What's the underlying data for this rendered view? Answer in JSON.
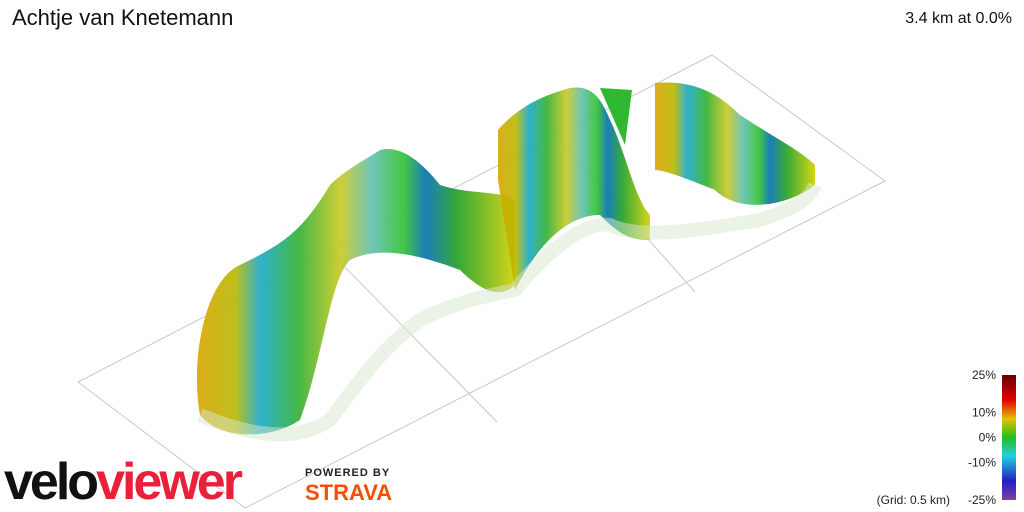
{
  "header": {
    "title": "Achtje van Knetemann",
    "summary": "3.4 km at 0.0%"
  },
  "legend": {
    "ticks": [
      {
        "value": 25,
        "label": "25%"
      },
      {
        "value": 10,
        "label": "10%"
      },
      {
        "value": 0,
        "label": "0%"
      },
      {
        "value": -10,
        "label": "-10%"
      },
      {
        "value": -25,
        "label": "-25%"
      }
    ],
    "grid_note": "(Grid: 0.5 km)"
  },
  "branding": {
    "logo_part1": "velo",
    "logo_part2": "viewer",
    "powered_by": "POWERED BY",
    "partner": "STRAVA"
  }
}
